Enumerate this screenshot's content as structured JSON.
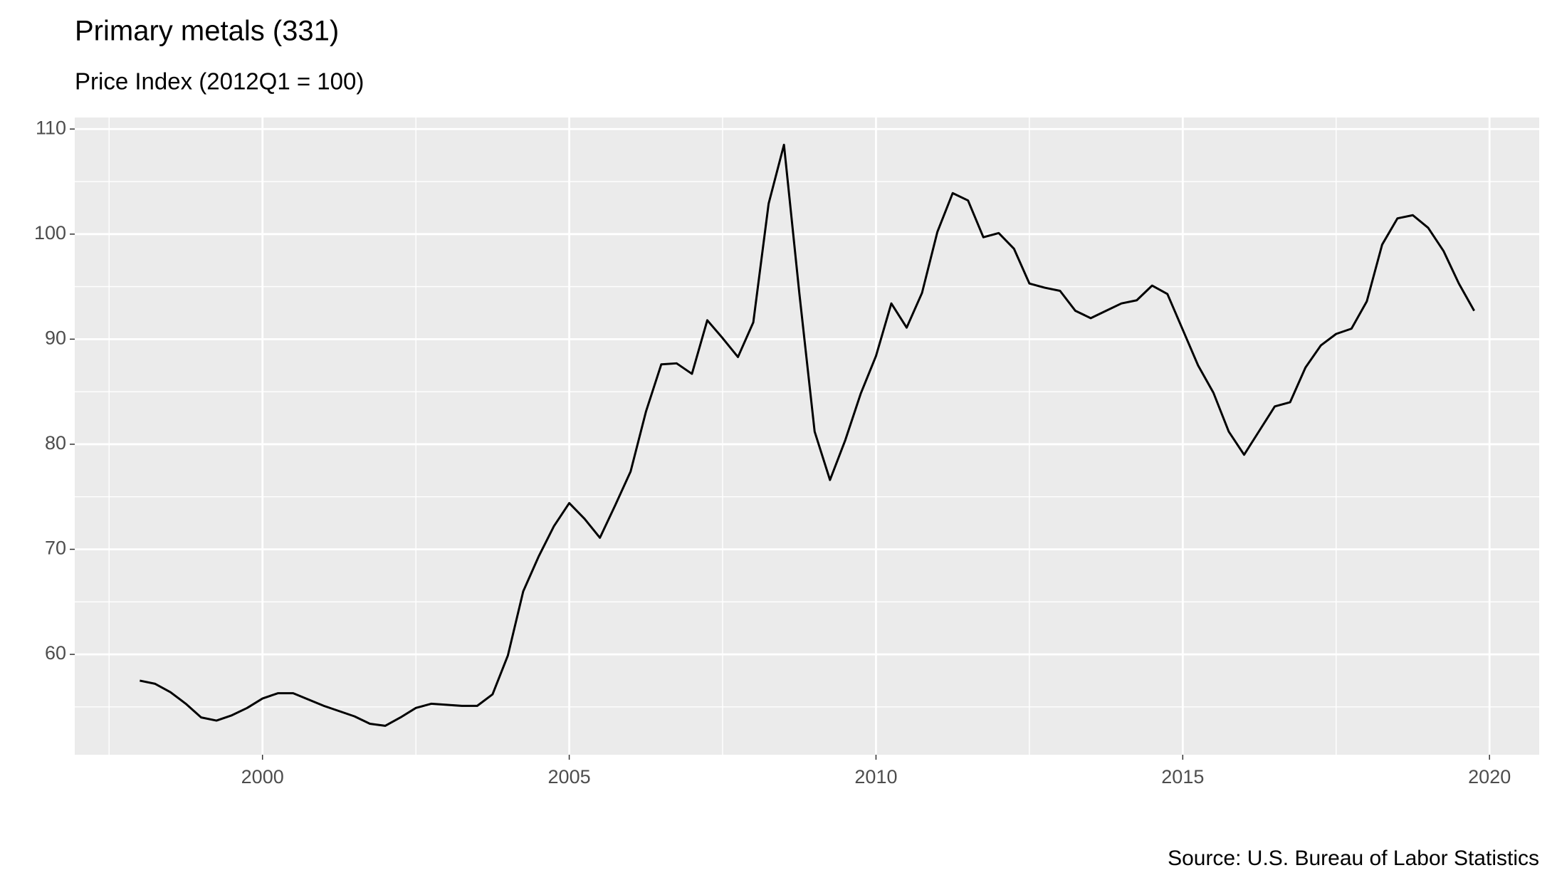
{
  "chart_data": {
    "type": "line",
    "title": "Primary metals (331)",
    "subtitle": "Price Index (2012Q1 = 100)",
    "source": "Source: U.S. Bureau of Labor Statistics",
    "x": [
      1998,
      1998.25,
      1998.5,
      1998.75,
      1999,
      1999.25,
      1999.5,
      1999.75,
      2000,
      2000.25,
      2000.5,
      2000.75,
      2001,
      2001.25,
      2001.5,
      2001.75,
      2002,
      2002.25,
      2002.5,
      2002.75,
      2003,
      2003.25,
      2003.5,
      2003.75,
      2004,
      2004.25,
      2004.5,
      2004.75,
      2005,
      2005.25,
      2005.5,
      2005.75,
      2006,
      2006.25,
      2006.5,
      2006.75,
      2007,
      2007.25,
      2007.5,
      2007.75,
      2008,
      2008.25,
      2008.5,
      2008.75,
      2009,
      2009.25,
      2009.5,
      2009.75,
      2010,
      2010.25,
      2010.5,
      2010.75,
      2011,
      2011.25,
      2011.5,
      2011.75,
      2012,
      2012.25,
      2012.5,
      2012.75,
      2013,
      2013.25,
      2013.5,
      2013.75,
      2014,
      2014.25,
      2014.5,
      2014.75,
      2015,
      2015.25,
      2015.5,
      2015.75,
      2016,
      2016.25,
      2016.5,
      2016.75,
      2017,
      2017.25,
      2017.5,
      2017.75,
      2018,
      2018.25,
      2018.5,
      2018.75,
      2019,
      2019.25,
      2019.5,
      2019.75
    ],
    "series": [
      {
        "color": "#000000",
        "values": [
          57.5,
          57.2,
          56.4,
          55.3,
          54.0,
          53.7,
          54.2,
          54.9,
          55.8,
          56.3,
          56.3,
          55.7,
          55.1,
          54.6,
          54.1,
          53.4,
          53.2,
          54.0,
          54.9,
          55.3,
          55.2,
          55.1,
          55.1,
          56.2,
          59.9,
          66.0,
          69.3,
          72.2,
          74.4,
          72.9,
          71.1,
          74.2,
          77.4,
          83.1,
          87.6,
          87.7,
          86.7,
          91.8,
          90.1,
          88.3,
          91.6,
          102.9,
          108.5,
          94.4,
          81.2,
          76.6,
          80.4,
          84.8,
          88.4,
          93.4,
          91.1,
          94.4,
          100.2,
          103.9,
          103.2,
          99.7,
          100.1,
          98.6,
          95.3,
          94.9,
          94.6,
          92.7,
          92.0,
          92.7,
          93.4,
          93.7,
          95.1,
          94.3,
          90.9,
          87.5,
          84.9,
          81.2,
          79.0,
          81.3,
          83.6,
          84.0,
          87.3,
          89.4,
          90.5,
          91.0,
          93.6,
          99.0,
          101.5,
          101.8,
          100.6,
          98.4,
          95.3,
          92.7
        ]
      }
    ],
    "xlim": [
      1996.94,
      2020.81
    ],
    "ylim": [
      50.45,
      111.1
    ],
    "xticks": [
      2000,
      2005,
      2010,
      2015,
      2020
    ],
    "yticks": [
      60,
      70,
      80,
      90,
      100,
      110
    ],
    "grid": true
  }
}
